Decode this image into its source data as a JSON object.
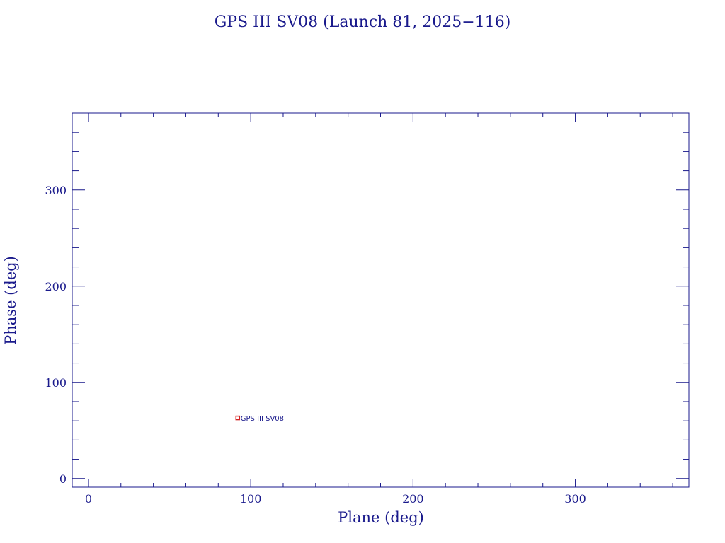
{
  "chart_data": {
    "type": "scatter",
    "title": "GPS III SV08 (Launch 81, 2025−116)",
    "xlabel": "Plane (deg)",
    "ylabel": "Phase (deg)",
    "xlim": [
      -10,
      370
    ],
    "ylim": [
      -9,
      380
    ],
    "x_ticks": [
      0,
      100,
      200,
      300
    ],
    "x_tick_labels": [
      "0",
      "100",
      "200",
      "300"
    ],
    "x_minor_step": 20,
    "y_ticks": [
      0,
      100,
      200,
      300
    ],
    "y_tick_labels": [
      "0",
      "100",
      "200",
      "300"
    ],
    "y_minor_step": 20,
    "grid": false,
    "points": [
      {
        "x": 92,
        "y": 63,
        "label": "GPS III SV08"
      }
    ]
  },
  "colors": {
    "axis": "#1a1a8c",
    "text": "#1a1a8c",
    "marker": "#d42020",
    "background": "#ffffff"
  }
}
